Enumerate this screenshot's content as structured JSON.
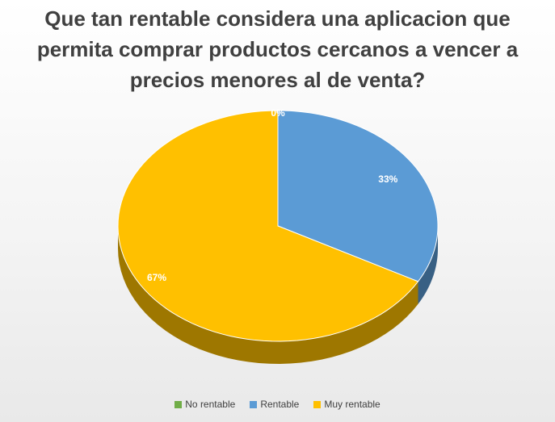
{
  "chart_data": {
    "type": "pie",
    "title": "Que tan rentable considera una aplicacion que permita comprar productos cercanos a vencer a precios menores al de venta?",
    "title_lines": [
      "Que tan rentable considera una aplicacion que",
      "permita comprar productos cercanos a vencer a",
      "precios menores al de venta?"
    ],
    "categories": [
      "No rentable",
      "Rentable",
      "Muy rentable"
    ],
    "values": [
      0,
      33,
      67
    ],
    "data_labels": [
      "0%",
      "33%",
      "67%"
    ],
    "colors": [
      "#70ad47",
      "#5b9bd5",
      "#ffc000"
    ],
    "style": "3d",
    "legend_position": "bottom"
  }
}
